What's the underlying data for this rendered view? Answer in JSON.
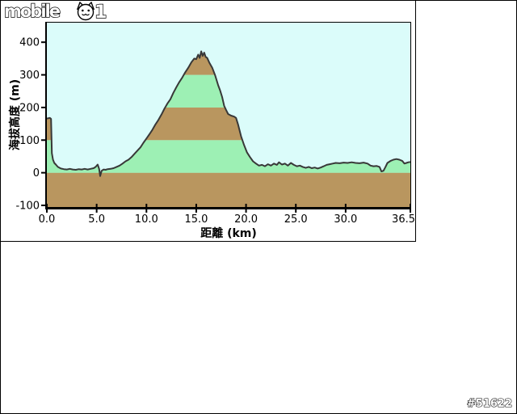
{
  "logo": {
    "text": "mobile",
    "one": "1",
    "cat_icon": "cat-face-icon"
  },
  "watermark_text": "#51622",
  "chart_data": {
    "type": "area",
    "title": "",
    "xlabel": "距離 (km)",
    "ylabel": "海拔高度 (m)",
    "xlim": [
      0,
      36.5
    ],
    "ylim": [
      -105,
      460
    ],
    "grid": false,
    "legend": "none",
    "x_ticks": [
      0,
      5,
      10,
      15,
      20,
      25,
      30,
      36.5
    ],
    "x_tick_labels": [
      "0.0",
      "5.0",
      "10.0",
      "15.0",
      "20.0",
      "25.0",
      "30.0",
      "36.5"
    ],
    "y_ticks": [
      -100,
      0,
      100,
      200,
      300,
      400
    ],
    "y_tick_labels": [
      "-100",
      "0",
      "100",
      "200",
      "300",
      "400"
    ],
    "colors": {
      "plot_bg": "#DBFCFA",
      "band_green": "#9DF0B4",
      "band_brown": "#B9965F",
      "line": "#383838",
      "frame": "#000000"
    },
    "bands": [
      {
        "from": -105,
        "to": 0,
        "color": "brown"
      },
      {
        "from": 0,
        "to": 100,
        "color": "green"
      },
      {
        "from": 100,
        "to": 200,
        "color": "brown"
      },
      {
        "from": 200,
        "to": 300,
        "color": "green"
      },
      {
        "from": 300,
        "to": 460,
        "color": "brown"
      }
    ],
    "series": [
      {
        "name": "elevation_profile",
        "points": [
          [
            0.0,
            166
          ],
          [
            0.3,
            168
          ],
          [
            0.42,
            165
          ],
          [
            0.5,
            60
          ],
          [
            0.62,
            40
          ],
          [
            0.75,
            30
          ],
          [
            0.9,
            25
          ],
          [
            1.1,
            18
          ],
          [
            1.4,
            13
          ],
          [
            1.7,
            11
          ],
          [
            2.0,
            10
          ],
          [
            2.3,
            12
          ],
          [
            2.6,
            10
          ],
          [
            2.9,
            9
          ],
          [
            3.2,
            11
          ],
          [
            3.5,
            10
          ],
          [
            3.8,
            12
          ],
          [
            4.1,
            10
          ],
          [
            4.4,
            12
          ],
          [
            4.7,
            14
          ],
          [
            4.9,
            18
          ],
          [
            5.1,
            25
          ],
          [
            5.25,
            12
          ],
          [
            5.35,
            -10
          ],
          [
            5.5,
            6
          ],
          [
            5.7,
            10
          ],
          [
            5.9,
            9
          ],
          [
            6.1,
            11
          ],
          [
            6.4,
            12
          ],
          [
            6.7,
            14
          ],
          [
            7.0,
            18
          ],
          [
            7.3,
            22
          ],
          [
            7.6,
            28
          ],
          [
            7.9,
            35
          ],
          [
            8.2,
            40
          ],
          [
            8.5,
            48
          ],
          [
            8.8,
            58
          ],
          [
            9.1,
            68
          ],
          [
            9.4,
            78
          ],
          [
            9.7,
            92
          ],
          [
            10.0,
            105
          ],
          [
            10.3,
            118
          ],
          [
            10.6,
            132
          ],
          [
            10.9,
            148
          ],
          [
            11.2,
            162
          ],
          [
            11.5,
            178
          ],
          [
            11.8,
            196
          ],
          [
            12.1,
            212
          ],
          [
            12.4,
            225
          ],
          [
            12.7,
            245
          ],
          [
            13.0,
            262
          ],
          [
            13.3,
            278
          ],
          [
            13.6,
            292
          ],
          [
            13.9,
            308
          ],
          [
            14.2,
            322
          ],
          [
            14.5,
            338
          ],
          [
            14.8,
            350
          ],
          [
            15.0,
            348
          ],
          [
            15.2,
            362
          ],
          [
            15.35,
            352
          ],
          [
            15.5,
            372
          ],
          [
            15.65,
            358
          ],
          [
            15.8,
            368
          ],
          [
            15.95,
            355
          ],
          [
            16.1,
            352
          ],
          [
            16.3,
            338
          ],
          [
            16.6,
            322
          ],
          [
            16.9,
            298
          ],
          [
            17.2,
            268
          ],
          [
            17.4,
            252
          ],
          [
            17.6,
            232
          ],
          [
            17.8,
            205
          ],
          [
            18.0,
            192
          ],
          [
            18.2,
            180
          ],
          [
            18.5,
            175
          ],
          [
            18.8,
            172
          ],
          [
            19.0,
            168
          ],
          [
            19.2,
            148
          ],
          [
            19.5,
            112
          ],
          [
            19.8,
            85
          ],
          [
            20.1,
            62
          ],
          [
            20.4,
            48
          ],
          [
            20.7,
            35
          ],
          [
            21.0,
            28
          ],
          [
            21.3,
            22
          ],
          [
            21.6,
            24
          ],
          [
            21.9,
            20
          ],
          [
            22.2,
            26
          ],
          [
            22.5,
            22
          ],
          [
            22.8,
            28
          ],
          [
            23.1,
            24
          ],
          [
            23.3,
            32
          ],
          [
            23.6,
            25
          ],
          [
            23.9,
            28
          ],
          [
            24.2,
            22
          ],
          [
            24.5,
            30
          ],
          [
            24.8,
            24
          ],
          [
            25.1,
            20
          ],
          [
            25.4,
            22
          ],
          [
            25.7,
            18
          ],
          [
            26.0,
            15
          ],
          [
            26.3,
            18
          ],
          [
            26.6,
            14
          ],
          [
            26.9,
            16
          ],
          [
            27.2,
            13
          ],
          [
            27.5,
            16
          ],
          [
            27.8,
            20
          ],
          [
            28.1,
            24
          ],
          [
            28.4,
            26
          ],
          [
            28.7,
            28
          ],
          [
            29.0,
            30
          ],
          [
            29.4,
            29
          ],
          [
            29.8,
            31
          ],
          [
            30.2,
            30
          ],
          [
            30.6,
            32
          ],
          [
            31.0,
            30
          ],
          [
            31.4,
            29
          ],
          [
            31.8,
            31
          ],
          [
            32.2,
            28
          ],
          [
            32.5,
            22
          ],
          [
            32.8,
            20
          ],
          [
            33.1,
            21
          ],
          [
            33.4,
            18
          ],
          [
            33.6,
            4
          ],
          [
            33.8,
            6
          ],
          [
            34.0,
            18
          ],
          [
            34.2,
            30
          ],
          [
            34.5,
            36
          ],
          [
            34.8,
            40
          ],
          [
            35.1,
            42
          ],
          [
            35.4,
            40
          ],
          [
            35.7,
            36
          ],
          [
            35.9,
            28
          ],
          [
            36.1,
            30
          ],
          [
            36.3,
            32
          ],
          [
            36.5,
            33
          ]
        ]
      }
    ]
  }
}
